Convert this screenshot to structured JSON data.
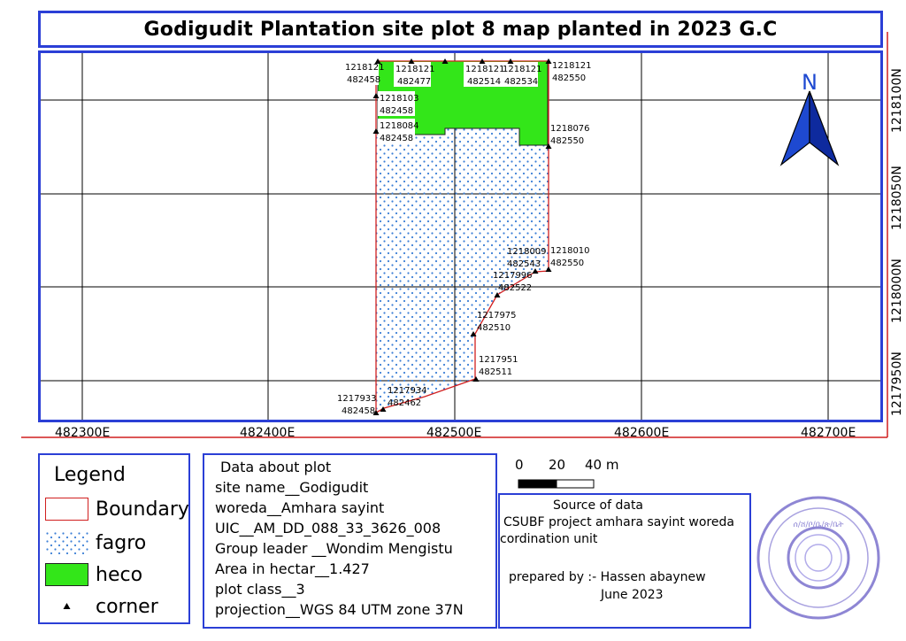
{
  "title": "Godigudit Plantation site plot 8 map planted in 2023 G.C",
  "north_arrow": {
    "label": "N",
    "icon": "north-arrow-icon"
  },
  "x_ticks": [
    "482300E",
    "482400E",
    "482500E",
    "482600E",
    "482700E"
  ],
  "y_ticks": [
    "1218100N",
    "1218050N",
    "1218000N",
    "1217950N"
  ],
  "points": [
    {
      "n": "1218121",
      "e": "482458"
    },
    {
      "n": "1218121",
      "e": "482477"
    },
    {
      "n": "1218121",
      "e": "482514"
    },
    {
      "n": "1218121",
      "e": "482534"
    },
    {
      "n": "1218121",
      "e": "482550"
    },
    {
      "n": "1218103",
      "e": "482458"
    },
    {
      "n": "1218084",
      "e": "482458"
    },
    {
      "n": "1218076",
      "e": "482550"
    },
    {
      "n": "1218009",
      "e": "482543"
    },
    {
      "n": "1218010",
      "e": "482550"
    },
    {
      "n": "1217996",
      "e": "482522"
    },
    {
      "n": "1217975",
      "e": "482510"
    },
    {
      "n": "1217951",
      "e": "482511"
    },
    {
      "n": "1217934",
      "e": "482462"
    },
    {
      "n": "1217933",
      "e": "482458"
    }
  ],
  "legend": {
    "title": "Legend",
    "items": [
      {
        "label": "Boundary",
        "color": "#d11f1f"
      },
      {
        "label": "fagro",
        "color": "#3c7fd6"
      },
      {
        "label": "heco",
        "color": "#33e619"
      },
      {
        "label": "corner",
        "color": "#000000"
      }
    ]
  },
  "plot_info": {
    "heading": "Data about plot",
    "lines": [
      "site name__Godigudit",
      "woreda__Amhara sayint",
      "UIC__AM_DD_088_33_3626_008",
      "Group leader __Wondim Mengistu",
      "Area in hectar__1.427",
      "plot class__3",
      "projection__WGS 84 UTM zone 37N"
    ]
  },
  "scale_bar": {
    "labels": [
      "0",
      "20",
      "40 m"
    ]
  },
  "source": {
    "heading": "Source of data",
    "line1": "CSUBF project amhara sayint woreda",
    "line2": "cordination unit",
    "prepared": "prepared by :- Hassen abaynew",
    "date": "June 2023"
  },
  "stamp": {
    "icon": "office-seal-stamp",
    "text": "ሰ/ሸ/ቦ/ቤ/ጽ/ቤት"
  }
}
